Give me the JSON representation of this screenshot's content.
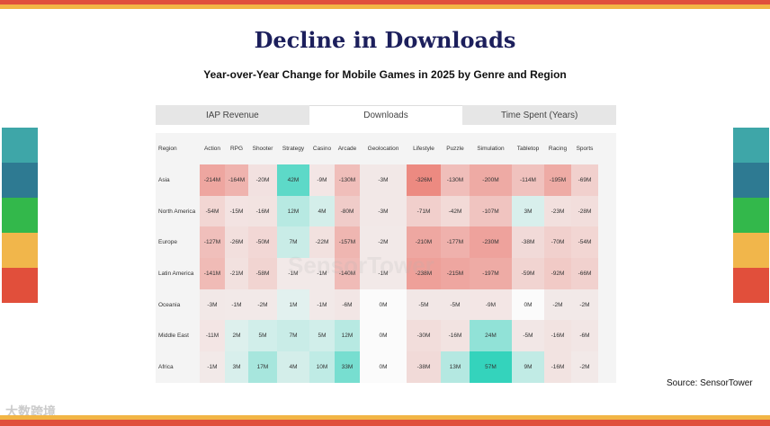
{
  "title": "Decline in Downloads",
  "subtitle": "Year-over-Year Change for Mobile Games in 2025 by Genre and Region",
  "tabs": [
    "IAP Revenue",
    "Downloads",
    "Time Spent (Years)"
  ],
  "active_tab": 1,
  "source": "Source: SensorTower",
  "watermark": "SensorTower",
  "logo_text": "大数跨境",
  "colors": {
    "negative": "#e8574a",
    "positive": "#27d0b8",
    "title": "#1c1f5c"
  },
  "chart_data": {
    "type": "heatmap",
    "title": "Decline in Downloads",
    "corner_label": "Region",
    "columns": [
      "Action",
      "RPG",
      "Shooter",
      "Strategy",
      "Casino",
      "Arcade",
      "Geolocation",
      "Lifestyle",
      "Puzzle",
      "Simulation",
      "Tabletop",
      "Racing",
      "Sports"
    ],
    "rows": [
      {
        "region": "Asia",
        "values": [
          -214,
          -164,
          -20,
          42,
          -9,
          -130,
          -3,
          -326,
          -130,
          -200,
          -114,
          -195,
          -69
        ]
      },
      {
        "region": "North America",
        "values": [
          -54,
          -15,
          -16,
          12,
          4,
          -80,
          -3,
          -71,
          -42,
          -107,
          3,
          -23,
          -28
        ]
      },
      {
        "region": "Europe",
        "values": [
          -127,
          -26,
          -50,
          7,
          -22,
          -157,
          -2,
          -210,
          -177,
          -230,
          -38,
          -70,
          -54
        ]
      },
      {
        "region": "Latin America",
        "values": [
          -141,
          -21,
          -58,
          -1,
          -1,
          -140,
          -1,
          -238,
          -215,
          -197,
          -59,
          -92,
          -66
        ]
      },
      {
        "region": "Oceania",
        "values": [
          -3,
          -1,
          -2,
          1,
          -1,
          -6,
          0,
          -5,
          -5,
          -9,
          0,
          -2,
          -2
        ]
      },
      {
        "region": "Middle East",
        "values": [
          -11,
          2,
          5,
          7,
          5,
          12,
          0,
          -30,
          -16,
          24,
          -5,
          -16,
          -6
        ]
      },
      {
        "region": "Africa",
        "values": [
          -1,
          3,
          17,
          4,
          10,
          33,
          0,
          -38,
          13,
          57,
          9,
          -16,
          -2
        ]
      }
    ],
    "unit_suffix": "M",
    "range": [
      -326,
      57
    ]
  }
}
